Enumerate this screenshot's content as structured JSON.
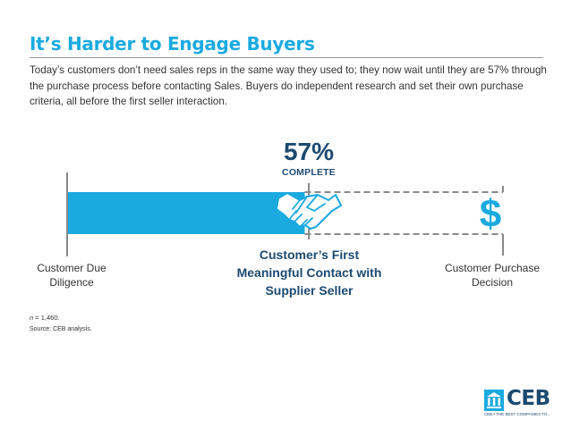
{
  "title": "It’s Harder to Engage Buyers",
  "intro": "Today’s customers don’t need sales reps in the same way they used to; they now wait until they are 57% through the purchase process before contacting Sales. Buyers do independent research and set their own purchase criteria, all before the first seller interaction.",
  "progress": {
    "percent_label": "57%",
    "complete_label": "COMPLETE",
    "fraction": 0.57
  },
  "labels": {
    "left": "Customer Due Diligence",
    "center": "Customer’s First Meaningful Contact with Supplier Seller",
    "right": "Customer Purchase Decision",
    "dollar": "$"
  },
  "notes": {
    "n_prefix": "n",
    "n_value": " = 1,460.",
    "source": "Source: CEB analysis."
  },
  "logo": {
    "name": "CEB",
    "tagline": "CEB • THE BEST COMPANIES TO..."
  },
  "icons": {
    "contact": "handshake-icon",
    "logo": "institution-icon"
  },
  "colors": {
    "accent": "#1aaae0",
    "navy": "#1c4a70",
    "bar": "#1aaae0",
    "dashed": "#8a8a8a"
  }
}
